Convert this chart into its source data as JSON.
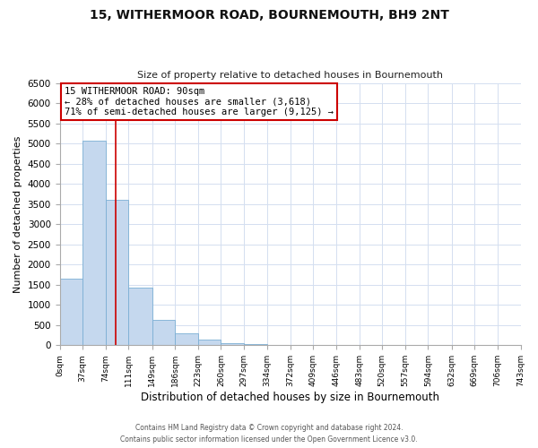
{
  "title": "15, WITHERMOOR ROAD, BOURNEMOUTH, BH9 2NT",
  "subtitle": "Size of property relative to detached houses in Bournemouth",
  "xlabel": "Distribution of detached houses by size in Bournemouth",
  "ylabel": "Number of detached properties",
  "bar_color": "#c5d8ee",
  "bar_edge_color": "#7bafd4",
  "bin_edges": [
    0,
    37,
    74,
    111,
    149,
    186,
    223,
    260,
    297,
    334,
    372,
    409,
    446,
    483,
    520,
    557,
    594,
    632,
    669,
    706,
    743
  ],
  "bar_heights": [
    1650,
    5075,
    3600,
    1420,
    620,
    290,
    145,
    60,
    30,
    0,
    0,
    0,
    0,
    0,
    0,
    0,
    0,
    0,
    0,
    0
  ],
  "tick_labels": [
    "0sqm",
    "37sqm",
    "74sqm",
    "111sqm",
    "149sqm",
    "186sqm",
    "223sqm",
    "260sqm",
    "297sqm",
    "334sqm",
    "372sqm",
    "409sqm",
    "446sqm",
    "483sqm",
    "520sqm",
    "557sqm",
    "594sqm",
    "632sqm",
    "669sqm",
    "706sqm",
    "743sqm"
  ],
  "ylim": [
    0,
    6500
  ],
  "yticks": [
    0,
    500,
    1000,
    1500,
    2000,
    2500,
    3000,
    3500,
    4000,
    4500,
    5000,
    5500,
    6000,
    6500
  ],
  "property_line_x": 90,
  "annot_line1": "15 WITHERMOOR ROAD: 90sqm",
  "annot_line2": "← 28% of detached houses are smaller (3,618)",
  "annot_line3": "71% of semi-detached houses are larger (9,125) →",
  "annotation_box_edge_color": "#cc0000",
  "footer_line1": "Contains HM Land Registry data © Crown copyright and database right 2024.",
  "footer_line2": "Contains public sector information licensed under the Open Government Licence v3.0.",
  "background_color": "#ffffff",
  "grid_color": "#d4dff0"
}
